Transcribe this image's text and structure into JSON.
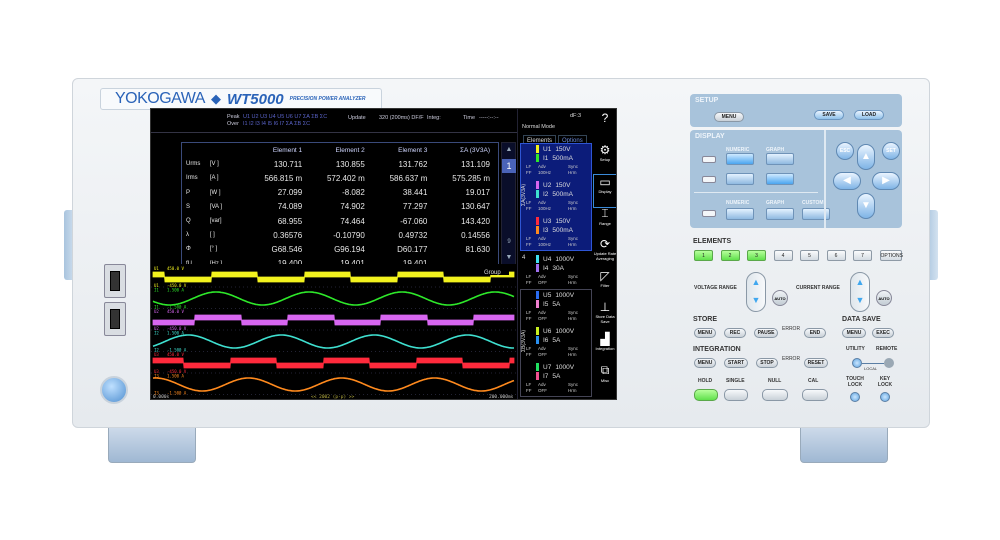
{
  "brand": {
    "logo": "YOKOGAWA",
    "model": "WT5000",
    "subtitle": "PRECISION POWER ANALYZER"
  },
  "screen": {
    "topbar": {
      "peak_label": "Peak",
      "over_label": "Over",
      "peak_values": "U1 U2 U3 U4 U5 U6 U7 ΣA ΣB ΣC",
      "over_values": "I1 I2 I3 I4 I5 I6 I7 ΣA ΣB ΣC",
      "update_label": "Update",
      "update_value": "320 (200ms) DF/F",
      "integ_label": "Integ:",
      "time_label": "Time",
      "time_value": "-----:--:--",
      "df": "dF:3",
      "mode": "Normal Mode"
    },
    "table": {
      "headers": [
        "",
        "",
        "Element 1",
        "Element 2",
        "Element 3",
        "ΣA (3V3A)"
      ],
      "rows": [
        [
          "Urms",
          "[V  ]",
          "130.711",
          "130.855",
          "131.762",
          "131.109"
        ],
        [
          "Irms",
          "[A  ]",
          "566.815 m",
          "572.402 m",
          "586.637 m",
          "575.285 m"
        ],
        [
          "P",
          "[W  ]",
          "27.099",
          "-8.082",
          "38.441",
          "19.017"
        ],
        [
          "S",
          "[VA ]",
          "74.089",
          "74.902",
          "77.297",
          "130.647"
        ],
        [
          "Q",
          "[var]",
          "68.955",
          "74.464",
          "-67.060",
          "143.420"
        ],
        [
          "λ",
          "[   ]",
          "0.36576",
          "-0.10790",
          "0.49732",
          "0.14556"
        ],
        [
          "Φ",
          "[°  ]",
          "G68.546",
          "G96.194",
          "D60.177",
          "81.630"
        ],
        [
          "fU",
          "[Hz ]",
          "19.400",
          "19.401",
          "19.401",
          ""
        ],
        [
          "fI",
          "[Hz ]",
          "19.399",
          "19.403",
          "19.401",
          ""
        ]
      ]
    },
    "page": {
      "current": "1",
      "last": "9"
    },
    "waveform": {
      "group_label": "Group",
      "start": "0.000s",
      "center": "<< 2002 (p-p) >>",
      "end": "200.000ms",
      "traces": [
        {
          "name": "U1",
          "type": "square",
          "color": "#f2f21e",
          "top": "450.0 V",
          "bottom": "-450.0 V",
          "phase": 0.35
        },
        {
          "name": "I1",
          "type": "sine",
          "color": "#2ee82a",
          "top": "1.500 A",
          "bottom": "-1.500 A",
          "phase": 0.55
        },
        {
          "name": "U2",
          "type": "square",
          "color": "#d766f0",
          "top": "450.0 V",
          "bottom": "-450.0 V",
          "phase": 0.53
        },
        {
          "name": "I2",
          "type": "sine",
          "color": "#3fe0d0",
          "top": "1.500 A",
          "bottom": "-1.500 A",
          "phase": 0.85
        },
        {
          "name": "U3",
          "type": "square",
          "color": "#ff2a3c",
          "top": "450.0 V",
          "bottom": "-450.0 V",
          "phase": 0.15
        },
        {
          "name": "I3",
          "type": "sine",
          "color": "#ff8a1e",
          "top": "1.500 A",
          "bottom": "-1.500 A",
          "phase": 0.2
        }
      ]
    },
    "panel": {
      "tabs": [
        "Elements",
        "Options"
      ],
      "wiring_a": "ΣA(3V3A)",
      "wiring_b": "ΣB(3V3A)",
      "group4": "4",
      "elements": [
        {
          "u": "U1",
          "ur": "150V",
          "uc": "#f2f21e",
          "i": "I1",
          "ir": "500mA",
          "ic": "#2ee82a",
          "lf": "LF",
          "adv": "Adv",
          "ff": "FF",
          "filt": "100Hz",
          "sync": "Sync",
          "hrm": "Hrm"
        },
        {
          "u": "U2",
          "ur": "150V",
          "uc": "#d766f0",
          "i": "I2",
          "ir": "500mA",
          "ic": "#3fe0d0",
          "lf": "LF",
          "adv": "Adv",
          "ff": "FF",
          "filt": "100Hz",
          "sync": "Sync",
          "hrm": "Hrm"
        },
        {
          "u": "U3",
          "ur": "150V",
          "uc": "#ff2a3c",
          "i": "I3",
          "ir": "500mA",
          "ic": "#ff8a1e",
          "lf": "LF",
          "adv": "Adv",
          "ff": "FF",
          "filt": "100Hz",
          "sync": "Sync",
          "hrm": "Hrm"
        },
        {
          "u": "U4",
          "ur": "1000V",
          "uc": "#3fe0f0",
          "i": "I4",
          "ir": "30A",
          "ic": "#a070f0",
          "lf": "LF",
          "adv": "Adv",
          "ff": "FF",
          "filt": "OFF",
          "sync": "Sync",
          "hrm": "Hrm"
        },
        {
          "u": "U5",
          "ur": "1000V",
          "uc": "#2a6cf0",
          "i": "I5",
          "ir": "5A",
          "ic": "#f080d0",
          "lf": "LF",
          "adv": "Adv",
          "ff": "FF",
          "filt": "OFF",
          "sync": "Sync",
          "hrm": "Hrm"
        },
        {
          "u": "U6",
          "ur": "1000V",
          "uc": "#c8f020",
          "i": "I6",
          "ir": "5A",
          "ic": "#2a90f0",
          "lf": "LF",
          "adv": "Adv",
          "ff": "FF",
          "filt": "OFF",
          "sync": "Sync",
          "hrm": "Hrm"
        },
        {
          "u": "U7",
          "ur": "1000V",
          "uc": "#20e060",
          "i": "I7",
          "ir": "5A",
          "ic": "#f05090",
          "lf": "LF",
          "adv": "Adv",
          "ff": "FF",
          "filt": "OFF",
          "sync": "Sync",
          "hrm": "Hrm"
        }
      ]
    },
    "menu": [
      {
        "icon": "question-icon",
        "label": ""
      },
      {
        "icon": "gear-icon",
        "label": "Setup"
      },
      {
        "icon": "display-icon",
        "label": "Display"
      },
      {
        "icon": "range-icon",
        "label": "Range"
      },
      {
        "icon": "refresh-icon",
        "label": "Update Rate Averaging"
      },
      {
        "icon": "filter-icon",
        "label": "Filter"
      },
      {
        "icon": "store-icon",
        "label": "Store Data Save"
      },
      {
        "icon": "chart-icon",
        "label": "Integration"
      },
      {
        "icon": "toolbox-icon",
        "label": "Misc"
      }
    ]
  },
  "controls": {
    "setup": {
      "title": "SETUP",
      "menu": "MENU",
      "save": "SAVE",
      "load": "LOAD"
    },
    "display": {
      "title": "DISPLAY",
      "numeric": "NUMERIC",
      "graph": "GRAPH",
      "numeric2": "NUMERIC",
      "graph2": "GRAPH",
      "custom": "CUSTOM",
      "esc": "ESC",
      "set": "SET"
    },
    "elements": {
      "title": "ELEMENTS",
      "buttons": [
        "1",
        "2",
        "3",
        "4",
        "5",
        "6",
        "7",
        "OPTIONS"
      ],
      "active": [
        true,
        true,
        true,
        false,
        false,
        false,
        false,
        false
      ]
    },
    "voltage_range": "VOLTAGE RANGE",
    "current_range": "CURRENT RANGE",
    "auto": "AUTO",
    "store": {
      "title": "STORE",
      "menu": "MENU",
      "rec": "REC",
      "pause": "PAUSE",
      "error": "ERROR",
      "end": "END"
    },
    "data_save": {
      "title": "DATA SAVE",
      "menu": "MENU",
      "exec": "EXEC"
    },
    "integration": {
      "title": "INTEGRATION",
      "menu": "MENU",
      "start": "START",
      "stop": "STOP",
      "error": "ERROR",
      "reset": "RESET"
    },
    "utility": "UTILITY",
    "remote": "REMOTE",
    "local": "LOCAL",
    "hold": "HOLD",
    "single": "SINGLE",
    "null": "NULL",
    "cal": "CAL",
    "touch_lock": "TOUCH LOCK",
    "key_lock": "KEY LOCK"
  }
}
